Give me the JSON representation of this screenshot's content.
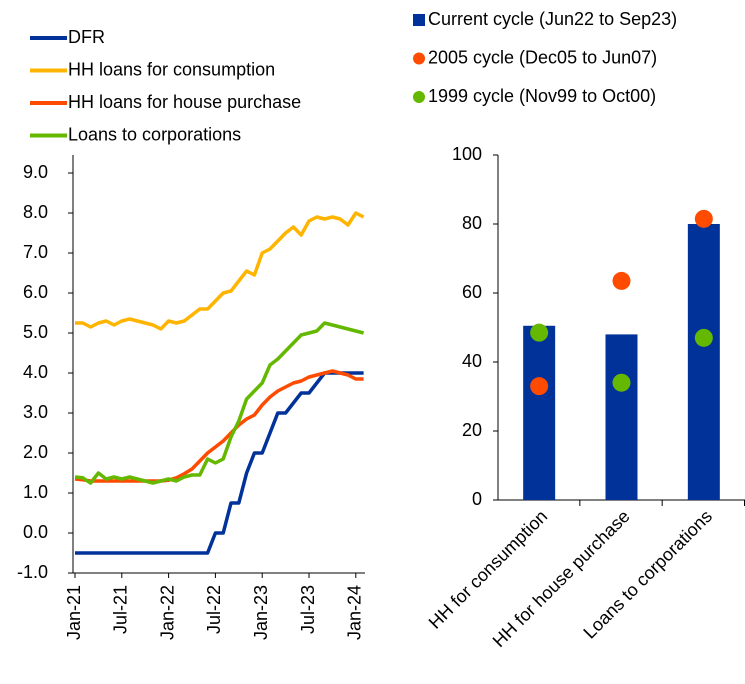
{
  "chart_data": [
    {
      "type": "line",
      "categories": [
        "Jan-21",
        null,
        null,
        null,
        null,
        null,
        "Jul-21",
        null,
        null,
        null,
        null,
        null,
        "Jan-22",
        null,
        null,
        null,
        null,
        null,
        "Jul-22",
        null,
        null,
        null,
        null,
        null,
        "Jan-23",
        null,
        null,
        null,
        null,
        null,
        "Jul-23",
        null,
        null,
        null,
        null,
        null,
        "Jan-24",
        null
      ],
      "series": [
        {
          "name": "DFR",
          "color": "#003299",
          "values": [
            -0.5,
            -0.5,
            -0.5,
            -0.5,
            -0.5,
            -0.5,
            -0.5,
            -0.5,
            -0.5,
            -0.5,
            -0.5,
            -0.5,
            -0.5,
            -0.5,
            -0.5,
            -0.5,
            -0.5,
            -0.5,
            0.0,
            0.0,
            0.75,
            0.75,
            1.5,
            2.0,
            2.0,
            2.5,
            3.0,
            3.0,
            3.25,
            3.5,
            3.5,
            3.75,
            4.0,
            4.0,
            4.0,
            4.0,
            4.0,
            4.0
          ]
        },
        {
          "name": "HH loans for consumption",
          "color": "#ffb400",
          "values": [
            5.25,
            5.25,
            5.15,
            5.25,
            5.3,
            5.2,
            5.3,
            5.35,
            5.3,
            5.25,
            5.2,
            5.1,
            5.3,
            5.25,
            5.3,
            5.45,
            5.6,
            5.6,
            5.8,
            6.0,
            6.05,
            6.3,
            6.55,
            6.45,
            7.0,
            7.1,
            7.3,
            7.5,
            7.65,
            7.45,
            7.8,
            7.9,
            7.85,
            7.9,
            7.85,
            7.7,
            8.0,
            7.9
          ]
        },
        {
          "name": "HH loans for house purchase",
          "color": "#ff4b00",
          "values": [
            1.35,
            1.33,
            1.3,
            1.3,
            1.3,
            1.3,
            1.3,
            1.3,
            1.3,
            1.3,
            1.3,
            1.3,
            1.32,
            1.38,
            1.48,
            1.6,
            1.8,
            2.0,
            2.15,
            2.3,
            2.5,
            2.7,
            2.85,
            2.95,
            3.2,
            3.4,
            3.55,
            3.65,
            3.75,
            3.8,
            3.9,
            3.95,
            4.0,
            4.05,
            4.0,
            3.95,
            3.85,
            3.85
          ]
        },
        {
          "name": "Loans to corporations",
          "color": "#65b800",
          "values": [
            1.4,
            1.38,
            1.25,
            1.5,
            1.35,
            1.4,
            1.35,
            1.4,
            1.35,
            1.3,
            1.25,
            1.3,
            1.35,
            1.3,
            1.4,
            1.45,
            1.45,
            1.85,
            1.75,
            1.85,
            2.4,
            2.8,
            3.35,
            3.55,
            3.75,
            4.2,
            4.35,
            4.55,
            4.75,
            4.95,
            5.0,
            5.05,
            5.25,
            5.2,
            5.15,
            5.1,
            5.05,
            5.0
          ]
        }
      ],
      "ylim": [
        -1,
        9
      ],
      "yticks": [
        {
          "value": -1,
          "label": "-1.0"
        },
        {
          "value": 0,
          "label": "0.0"
        },
        {
          "value": 1,
          "label": "1.0"
        },
        {
          "value": 2,
          "label": "2.0"
        },
        {
          "value": 3,
          "label": "3.0"
        },
        {
          "value": 4,
          "label": "4.0"
        },
        {
          "value": 5,
          "label": "5.0"
        },
        {
          "value": 6,
          "label": "6.0"
        },
        {
          "value": 7,
          "label": "7.0"
        },
        {
          "value": 8,
          "label": "8.0"
        },
        {
          "value": 9,
          "label": "9.0"
        }
      ]
    },
    {
      "type": "bar",
      "categories": [
        "HH for consumption",
        "HH for house purchase",
        "Loans to corporations"
      ],
      "series": [
        {
          "name": "Current cycle (Jun22 to Sep23)",
          "type": "bar",
          "color": "#003299",
          "values": [
            50.5,
            48,
            80
          ]
        },
        {
          "name": "2005 cycle (Dec05 to Jun07)",
          "type": "dot",
          "color": "#ff4b00",
          "values": [
            33,
            63.5,
            81.5
          ]
        },
        {
          "name": "1999 cycle (Nov99 to Oct00)",
          "type": "dot",
          "color": "#65b800",
          "values": [
            48.5,
            34,
            47
          ]
        }
      ],
      "ylim": [
        0,
        100
      ],
      "yticks": [
        0,
        20,
        40,
        60,
        80,
        100
      ]
    }
  ]
}
